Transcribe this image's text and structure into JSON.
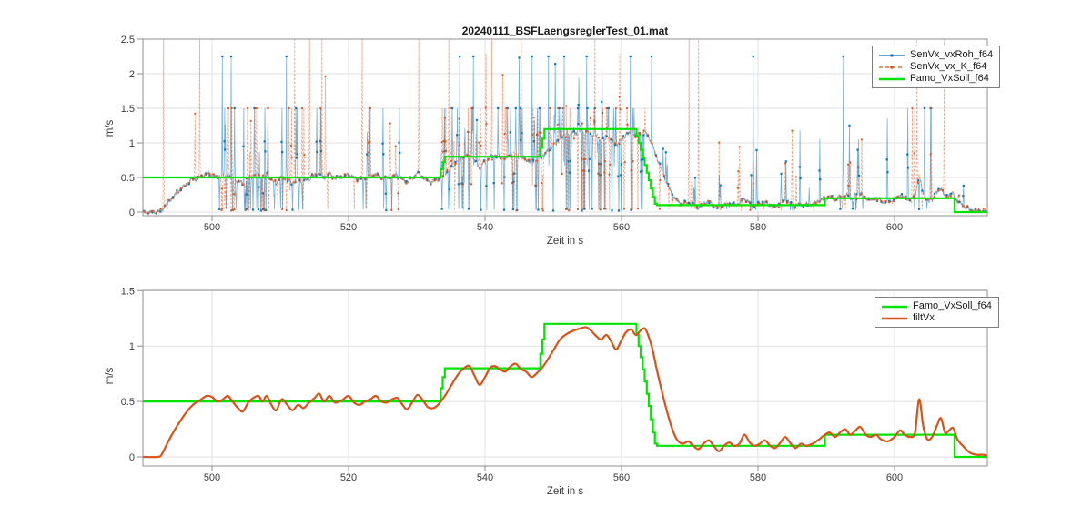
{
  "title": "20240111_BSFLaengsreglerTest_01.mat",
  "colors": {
    "blue": "#0072BD",
    "orange": "#D95319",
    "green": "#00E400",
    "grid": "#E0E0E0",
    "axis": "#8F8F8F",
    "tick_text": "#3D3D3D"
  },
  "top_chart": {
    "ylabel": "m/s",
    "xlabel": "Zeit in s",
    "legend": [
      {
        "label": "SenVx_vxRoh_f64",
        "swatch": "blue-solid-squaremarker"
      },
      {
        "label": "SenVx_vx_K_f64",
        "swatch": "orange-dashed-dotmarker"
      },
      {
        "label": "Famo_VxSoll_f64",
        "swatch": "green-solid"
      }
    ]
  },
  "bottom_chart": {
    "ylabel": "m/s",
    "xlabel": "Zeit in s",
    "legend": [
      {
        "label": "Famo_VxSoll_f64",
        "swatch": "green-solid"
      },
      {
        "label": "filtVx",
        "swatch": "orange-solid"
      }
    ]
  },
  "chart_data": [
    {
      "type": "line",
      "title": "20240111_BSFLaengsreglerTest_01.mat",
      "xlabel": "Zeit in s",
      "ylabel": "m/s",
      "xlim": [
        489.9,
        613.6
      ],
      "ylim": [
        0,
        2.5
      ],
      "xticks": [
        500,
        520,
        540,
        560,
        580,
        600
      ],
      "xtick_labels": [
        "500",
        "520",
        "540",
        "560",
        "580",
        "600"
      ],
      "yticks": [
        0,
        0.5,
        1,
        1.5,
        2,
        2.5
      ],
      "ytick_labels": [
        "0",
        "0.5",
        "1",
        "1.5",
        "2",
        "2.5"
      ],
      "grid": true,
      "legend_position": "northeast",
      "series": [
        {
          "name": "SenVx_vxRoh_f64",
          "color_key": "blue",
          "style": "noisy-raw",
          "synthesis_key": "SenVx_vxRoh_f64"
        },
        {
          "name": "SenVx_vx_K_f64",
          "color_key": "orange",
          "style": "noisy-dashed",
          "synthesis_key": "SenVx_vx_K_f64"
        },
        {
          "name": "Famo_VxSoll_f64",
          "color_key": "green",
          "style": "step",
          "points_key": "famo_vxsoll"
        }
      ]
    },
    {
      "type": "line",
      "title": "",
      "xlabel": "Zeit in s",
      "ylabel": "m/s",
      "xlim": [
        489.9,
        613.6
      ],
      "ylim": [
        0,
        1.5
      ],
      "xticks": [
        500,
        520,
        540,
        560,
        580,
        600
      ],
      "xtick_labels": [
        "500",
        "520",
        "540",
        "560",
        "580",
        "600"
      ],
      "yticks": [
        0,
        0.5,
        1,
        1.5
      ],
      "ytick_labels": [
        "0",
        "0.5",
        "1",
        "1.5"
      ],
      "grid": true,
      "legend_position": "northeast",
      "series": [
        {
          "name": "Famo_VxSoll_f64",
          "color_key": "green",
          "style": "step",
          "points_key": "famo_vxsoll"
        },
        {
          "name": "filtVx",
          "color_key": "orange",
          "style": "smooth",
          "points_key": "filtvx"
        }
      ]
    }
  ],
  "series_data": {
    "famo_vxsoll": [
      [
        489.9,
        0.5
      ],
      [
        533.2,
        0.5
      ],
      [
        533.5,
        0.62
      ],
      [
        533.8,
        0.72
      ],
      [
        534.1,
        0.8
      ],
      [
        547.8,
        0.8
      ],
      [
        548.1,
        0.93
      ],
      [
        548.4,
        1.06
      ],
      [
        548.7,
        1.2
      ],
      [
        561.9,
        1.2
      ],
      [
        562.2,
        1.1
      ],
      [
        562.5,
        1.0
      ],
      [
        562.8,
        0.9
      ],
      [
        563.1,
        0.79
      ],
      [
        563.4,
        0.68
      ],
      [
        563.7,
        0.57
      ],
      [
        564.0,
        0.46
      ],
      [
        564.3,
        0.34
      ],
      [
        564.6,
        0.22
      ],
      [
        564.9,
        0.12
      ],
      [
        565.2,
        0.1
      ],
      [
        589.6,
        0.1
      ],
      [
        589.8,
        0.2
      ],
      [
        608.6,
        0.2
      ],
      [
        608.8,
        0.0
      ],
      [
        613.6,
        0.0
      ]
    ],
    "filtvx": [
      [
        489.9,
        0.0
      ],
      [
        492.0,
        0.0
      ],
      [
        492.6,
        0.02
      ],
      [
        493.5,
        0.13
      ],
      [
        494.3,
        0.22
      ],
      [
        495.2,
        0.31
      ],
      [
        496.2,
        0.4
      ],
      [
        497.2,
        0.47
      ],
      [
        498.2,
        0.51
      ],
      [
        499.2,
        0.55
      ],
      [
        500.0,
        0.54
      ],
      [
        500.8,
        0.5
      ],
      [
        501.6,
        0.52
      ],
      [
        502.3,
        0.55
      ],
      [
        503.0,
        0.5
      ],
      [
        503.8,
        0.44
      ],
      [
        504.5,
        0.41
      ],
      [
        505.3,
        0.49
      ],
      [
        506.0,
        0.53
      ],
      [
        506.8,
        0.55
      ],
      [
        507.4,
        0.5
      ],
      [
        508.0,
        0.55
      ],
      [
        508.7,
        0.47
      ],
      [
        509.4,
        0.42
      ],
      [
        510.2,
        0.52
      ],
      [
        511.0,
        0.47
      ],
      [
        511.8,
        0.42
      ],
      [
        512.6,
        0.47
      ],
      [
        513.4,
        0.44
      ],
      [
        514.2,
        0.49
      ],
      [
        515.0,
        0.53
      ],
      [
        515.7,
        0.57
      ],
      [
        516.4,
        0.5
      ],
      [
        517.2,
        0.55
      ],
      [
        518.0,
        0.49
      ],
      [
        519.0,
        0.51
      ],
      [
        520.0,
        0.55
      ],
      [
        520.8,
        0.49
      ],
      [
        521.6,
        0.47
      ],
      [
        522.4,
        0.5
      ],
      [
        523.2,
        0.52
      ],
      [
        524.0,
        0.55
      ],
      [
        524.8,
        0.5
      ],
      [
        525.6,
        0.49
      ],
      [
        526.4,
        0.52
      ],
      [
        527.2,
        0.53
      ],
      [
        527.9,
        0.47
      ],
      [
        528.6,
        0.43
      ],
      [
        529.4,
        0.5
      ],
      [
        530.1,
        0.56
      ],
      [
        530.9,
        0.51
      ],
      [
        531.6,
        0.45
      ],
      [
        532.4,
        0.44
      ],
      [
        533.1,
        0.47
      ],
      [
        534.0,
        0.54
      ],
      [
        535.0,
        0.64
      ],
      [
        536.0,
        0.74
      ],
      [
        536.9,
        0.8
      ],
      [
        537.7,
        0.82
      ],
      [
        538.4,
        0.74
      ],
      [
        539.2,
        0.65
      ],
      [
        540.0,
        0.72
      ],
      [
        540.7,
        0.8
      ],
      [
        541.4,
        0.82
      ],
      [
        542.2,
        0.79
      ],
      [
        543.0,
        0.77
      ],
      [
        543.8,
        0.82
      ],
      [
        544.5,
        0.84
      ],
      [
        545.3,
        0.79
      ],
      [
        546.0,
        0.77
      ],
      [
        546.8,
        0.72
      ],
      [
        547.5,
        0.75
      ],
      [
        548.3,
        0.8
      ],
      [
        549.0,
        0.86
      ],
      [
        550.0,
        0.96
      ],
      [
        551.0,
        1.06
      ],
      [
        552.0,
        1.11
      ],
      [
        553.0,
        1.14
      ],
      [
        554.0,
        1.16
      ],
      [
        554.8,
        1.17
      ],
      [
        555.5,
        1.14
      ],
      [
        556.3,
        1.09
      ],
      [
        557.0,
        1.06
      ],
      [
        557.8,
        1.1
      ],
      [
        558.5,
        1.04
      ],
      [
        559.2,
        0.97
      ],
      [
        559.9,
        1.04
      ],
      [
        560.6,
        1.12
      ],
      [
        561.4,
        1.15
      ],
      [
        562.1,
        1.1
      ],
      [
        562.8,
        1.14
      ],
      [
        563.4,
        1.16
      ],
      [
        563.9,
        1.1
      ],
      [
        564.5,
        0.98
      ],
      [
        565.2,
        0.78
      ],
      [
        566.0,
        0.57
      ],
      [
        566.8,
        0.38
      ],
      [
        567.5,
        0.24
      ],
      [
        568.2,
        0.15
      ],
      [
        569.0,
        0.12
      ],
      [
        569.8,
        0.14
      ],
      [
        570.5,
        0.1
      ],
      [
        571.3,
        0.07
      ],
      [
        572.0,
        0.12
      ],
      [
        572.8,
        0.15
      ],
      [
        573.5,
        0.1
      ],
      [
        574.3,
        0.05
      ],
      [
        575.0,
        0.1
      ],
      [
        575.8,
        0.13
      ],
      [
        576.5,
        0.1
      ],
      [
        577.3,
        0.12
      ],
      [
        578.0,
        0.2
      ],
      [
        578.8,
        0.13
      ],
      [
        579.5,
        0.1
      ],
      [
        580.3,
        0.12
      ],
      [
        581.0,
        0.15
      ],
      [
        581.8,
        0.1
      ],
      [
        582.5,
        0.08
      ],
      [
        583.3,
        0.13
      ],
      [
        584.0,
        0.18
      ],
      [
        584.8,
        0.12
      ],
      [
        585.5,
        0.08
      ],
      [
        586.3,
        0.12
      ],
      [
        587.0,
        0.1
      ],
      [
        588.0,
        0.12
      ],
      [
        589.0,
        0.16
      ],
      [
        589.8,
        0.2
      ],
      [
        590.5,
        0.22
      ],
      [
        591.3,
        0.18
      ],
      [
        592.0,
        0.22
      ],
      [
        592.8,
        0.25
      ],
      [
        593.5,
        0.2
      ],
      [
        594.3,
        0.24
      ],
      [
        595.0,
        0.27
      ],
      [
        595.8,
        0.2
      ],
      [
        596.5,
        0.18
      ],
      [
        597.3,
        0.2
      ],
      [
        598.0,
        0.16
      ],
      [
        599.0,
        0.14
      ],
      [
        600.0,
        0.18
      ],
      [
        600.8,
        0.24
      ],
      [
        601.5,
        0.2
      ],
      [
        602.3,
        0.18
      ],
      [
        603.0,
        0.22
      ],
      [
        603.6,
        0.52
      ],
      [
        604.2,
        0.28
      ],
      [
        604.8,
        0.16
      ],
      [
        605.5,
        0.18
      ],
      [
        606.2,
        0.28
      ],
      [
        606.8,
        0.35
      ],
      [
        607.4,
        0.22
      ],
      [
        608.0,
        0.24
      ],
      [
        608.6,
        0.26
      ],
      [
        609.2,
        0.16
      ],
      [
        610.0,
        0.1
      ],
      [
        611.0,
        0.04
      ],
      [
        612.0,
        0.02
      ],
      [
        613.0,
        0.02
      ],
      [
        613.6,
        0.01
      ]
    ],
    "raw_noise_model": {
      "sample_dt": 0.05,
      "baseline": "filtvx",
      "noise_amp": 0.055,
      "down_spike_prob": 0.42,
      "saturation_level": 1.5,
      "spike_clusters": [
        [
          500.8,
          513.5,
          3.0,
          1.5
        ],
        [
          515.3,
          516.6,
          1.2,
          1.5
        ],
        [
          520.8,
          523.2,
          1.6,
          1.5
        ],
        [
          524.8,
          527.6,
          1.6,
          1.5
        ],
        [
          533.5,
          545.6,
          3.0,
          1.5
        ],
        [
          547.0,
          563.6,
          3.5,
          1.5
        ],
        [
          565.0,
          567.5,
          1.2,
          1.2
        ],
        [
          569.5,
          575.0,
          0.8,
          0.6
        ],
        [
          577.0,
          579.8,
          1.7,
          1.0
        ],
        [
          583.0,
          585.8,
          1.7,
          0.9
        ],
        [
          586.8,
          588.2,
          0.7,
          0.5
        ],
        [
          591.8,
          595.8,
          1.7,
          1.1
        ],
        [
          601.8,
          605.6,
          1.9,
          1.5
        ],
        [
          609.0,
          611.0,
          0.8,
          0.4
        ]
      ],
      "background_spike_count": 14,
      "tall_spikes": {
        "SenVx_vx_K_f64": [
          492.9,
          498.2,
          512.1,
          514.3,
          516.1,
          522.0,
          530.3,
          534.7,
          541.0,
          545.3,
          556.1,
          569.9,
          571.3,
          603.3,
          607.3
        ],
        "SenVx_vxRoh_f64": [
          501.5,
          502.8,
          510.9,
          536.3,
          538.3,
          546.9,
          549.3,
          551.6,
          554.9,
          561.3,
          564.4,
          579.3,
          592.5
        ]
      },
      "tall_spike_height": {
        "SenVx_vxRoh_f64": 2.25,
        "SenVx_vx_K_f64": 2.52
      },
      "seeds": {
        "SenVx_vxRoh_f64": 101,
        "SenVx_vx_K_f64": 202
      }
    }
  }
}
